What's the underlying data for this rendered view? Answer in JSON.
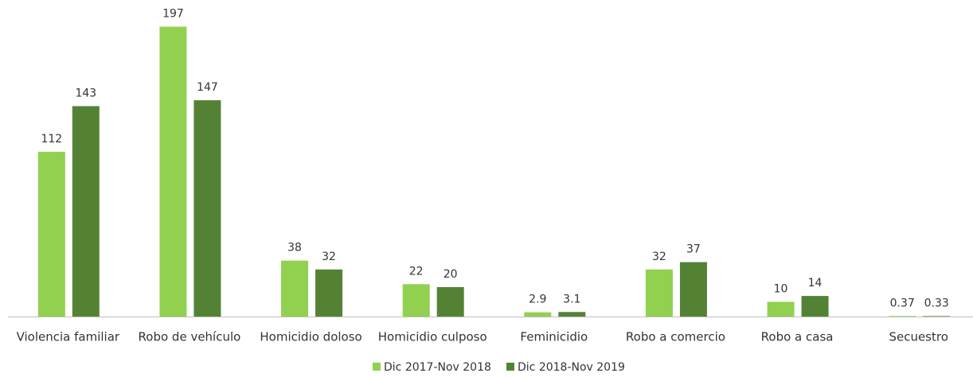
{
  "chart_data": {
    "type": "bar",
    "categories": [
      "Violencia familiar",
      "Robo de vehículo",
      "Homicidio doloso",
      "Homicidio culposo",
      "Feminicidio",
      "Robo a comercio",
      "Robo a casa",
      "Secuestro"
    ],
    "series": [
      {
        "name": "Dic 2017-Nov 2018",
        "color": "#92d050",
        "values": [
          112,
          197,
          38,
          22,
          2.9,
          32,
          10,
          0.37
        ]
      },
      {
        "name": "Dic 2018-Nov 2019",
        "color": "#548235",
        "values": [
          143,
          147,
          32,
          20,
          3.1,
          37,
          14,
          0.33
        ]
      }
    ],
    "ylim": [
      0,
      200
    ],
    "legend": "bottom"
  }
}
